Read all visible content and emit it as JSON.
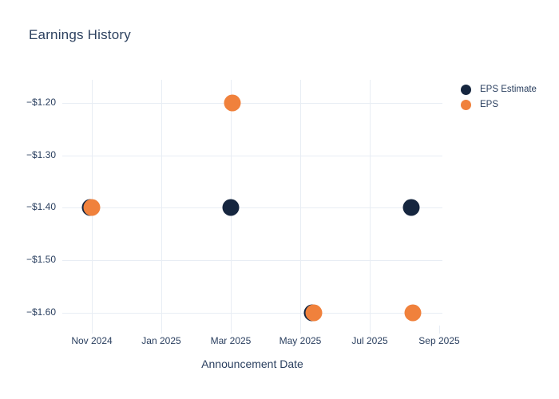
{
  "title": "Earnings History",
  "colors": {
    "eps_estimate": "#16263f",
    "eps": "#f0813c",
    "text": "#2a3f5f",
    "title_text": "#2d415f",
    "grid": "#e8edf4",
    "background": "#ffffff"
  },
  "legend": {
    "items": [
      {
        "label": "EPS Estimate",
        "color": "#16263f"
      },
      {
        "label": "EPS",
        "color": "#f0813c"
      }
    ]
  },
  "chart_data": {
    "type": "scatter",
    "title": "Earnings History",
    "xlabel": "Announcement Date",
    "ylabel": "",
    "grid": true,
    "legend_position": "top-right",
    "x_axis": {
      "unit": "months since Nov 2024",
      "range": [
        -0.85,
        10.1
      ],
      "ticks": [
        {
          "label": "Nov 2024",
          "m": 0,
          "gridline": true
        },
        {
          "label": "Jan 2025",
          "m": 2,
          "gridline": true
        },
        {
          "label": "Mar 2025",
          "m": 4,
          "gridline": true
        },
        {
          "label": "May 2025",
          "m": 6,
          "gridline": true
        },
        {
          "label": "Jul 2025",
          "m": 8,
          "gridline": true
        },
        {
          "label": "Sep 2025",
          "m": 10,
          "gridline": false
        }
      ]
    },
    "y_axis": {
      "unit": "USD per share",
      "range": [
        -1.64,
        -1.16
      ],
      "ticks": [
        {
          "label": "−$1.20",
          "value": -1.2
        },
        {
          "label": "−$1.30",
          "value": -1.3
        },
        {
          "label": "−$1.40",
          "value": -1.4
        },
        {
          "label": "−$1.50",
          "value": -1.5
        },
        {
          "label": "−$1.60",
          "value": -1.6
        }
      ]
    },
    "series": [
      {
        "name": "EPS Estimate",
        "color": "#16263f",
        "marker": "circle",
        "points": [
          {
            "date": "Nov 2024",
            "m": 0.0,
            "value": -1.4
          },
          {
            "date": "Mar 2025",
            "m": 4.05,
            "value": -1.4
          },
          {
            "date": "May 2025",
            "m": 6.4,
            "value": -1.6
          },
          {
            "date": "Aug 2025",
            "m": 9.25,
            "value": -1.4
          }
        ]
      },
      {
        "name": "EPS",
        "color": "#f0813c",
        "marker": "circle",
        "points": [
          {
            "date": "Nov 2024",
            "m": 0.0,
            "value": -1.4
          },
          {
            "date": "Mar 2025",
            "m": 4.05,
            "value": -1.2
          },
          {
            "date": "May 2025",
            "m": 6.4,
            "value": -1.6
          },
          {
            "date": "Aug 2025",
            "m": 9.25,
            "value": -1.6
          }
        ]
      }
    ]
  }
}
